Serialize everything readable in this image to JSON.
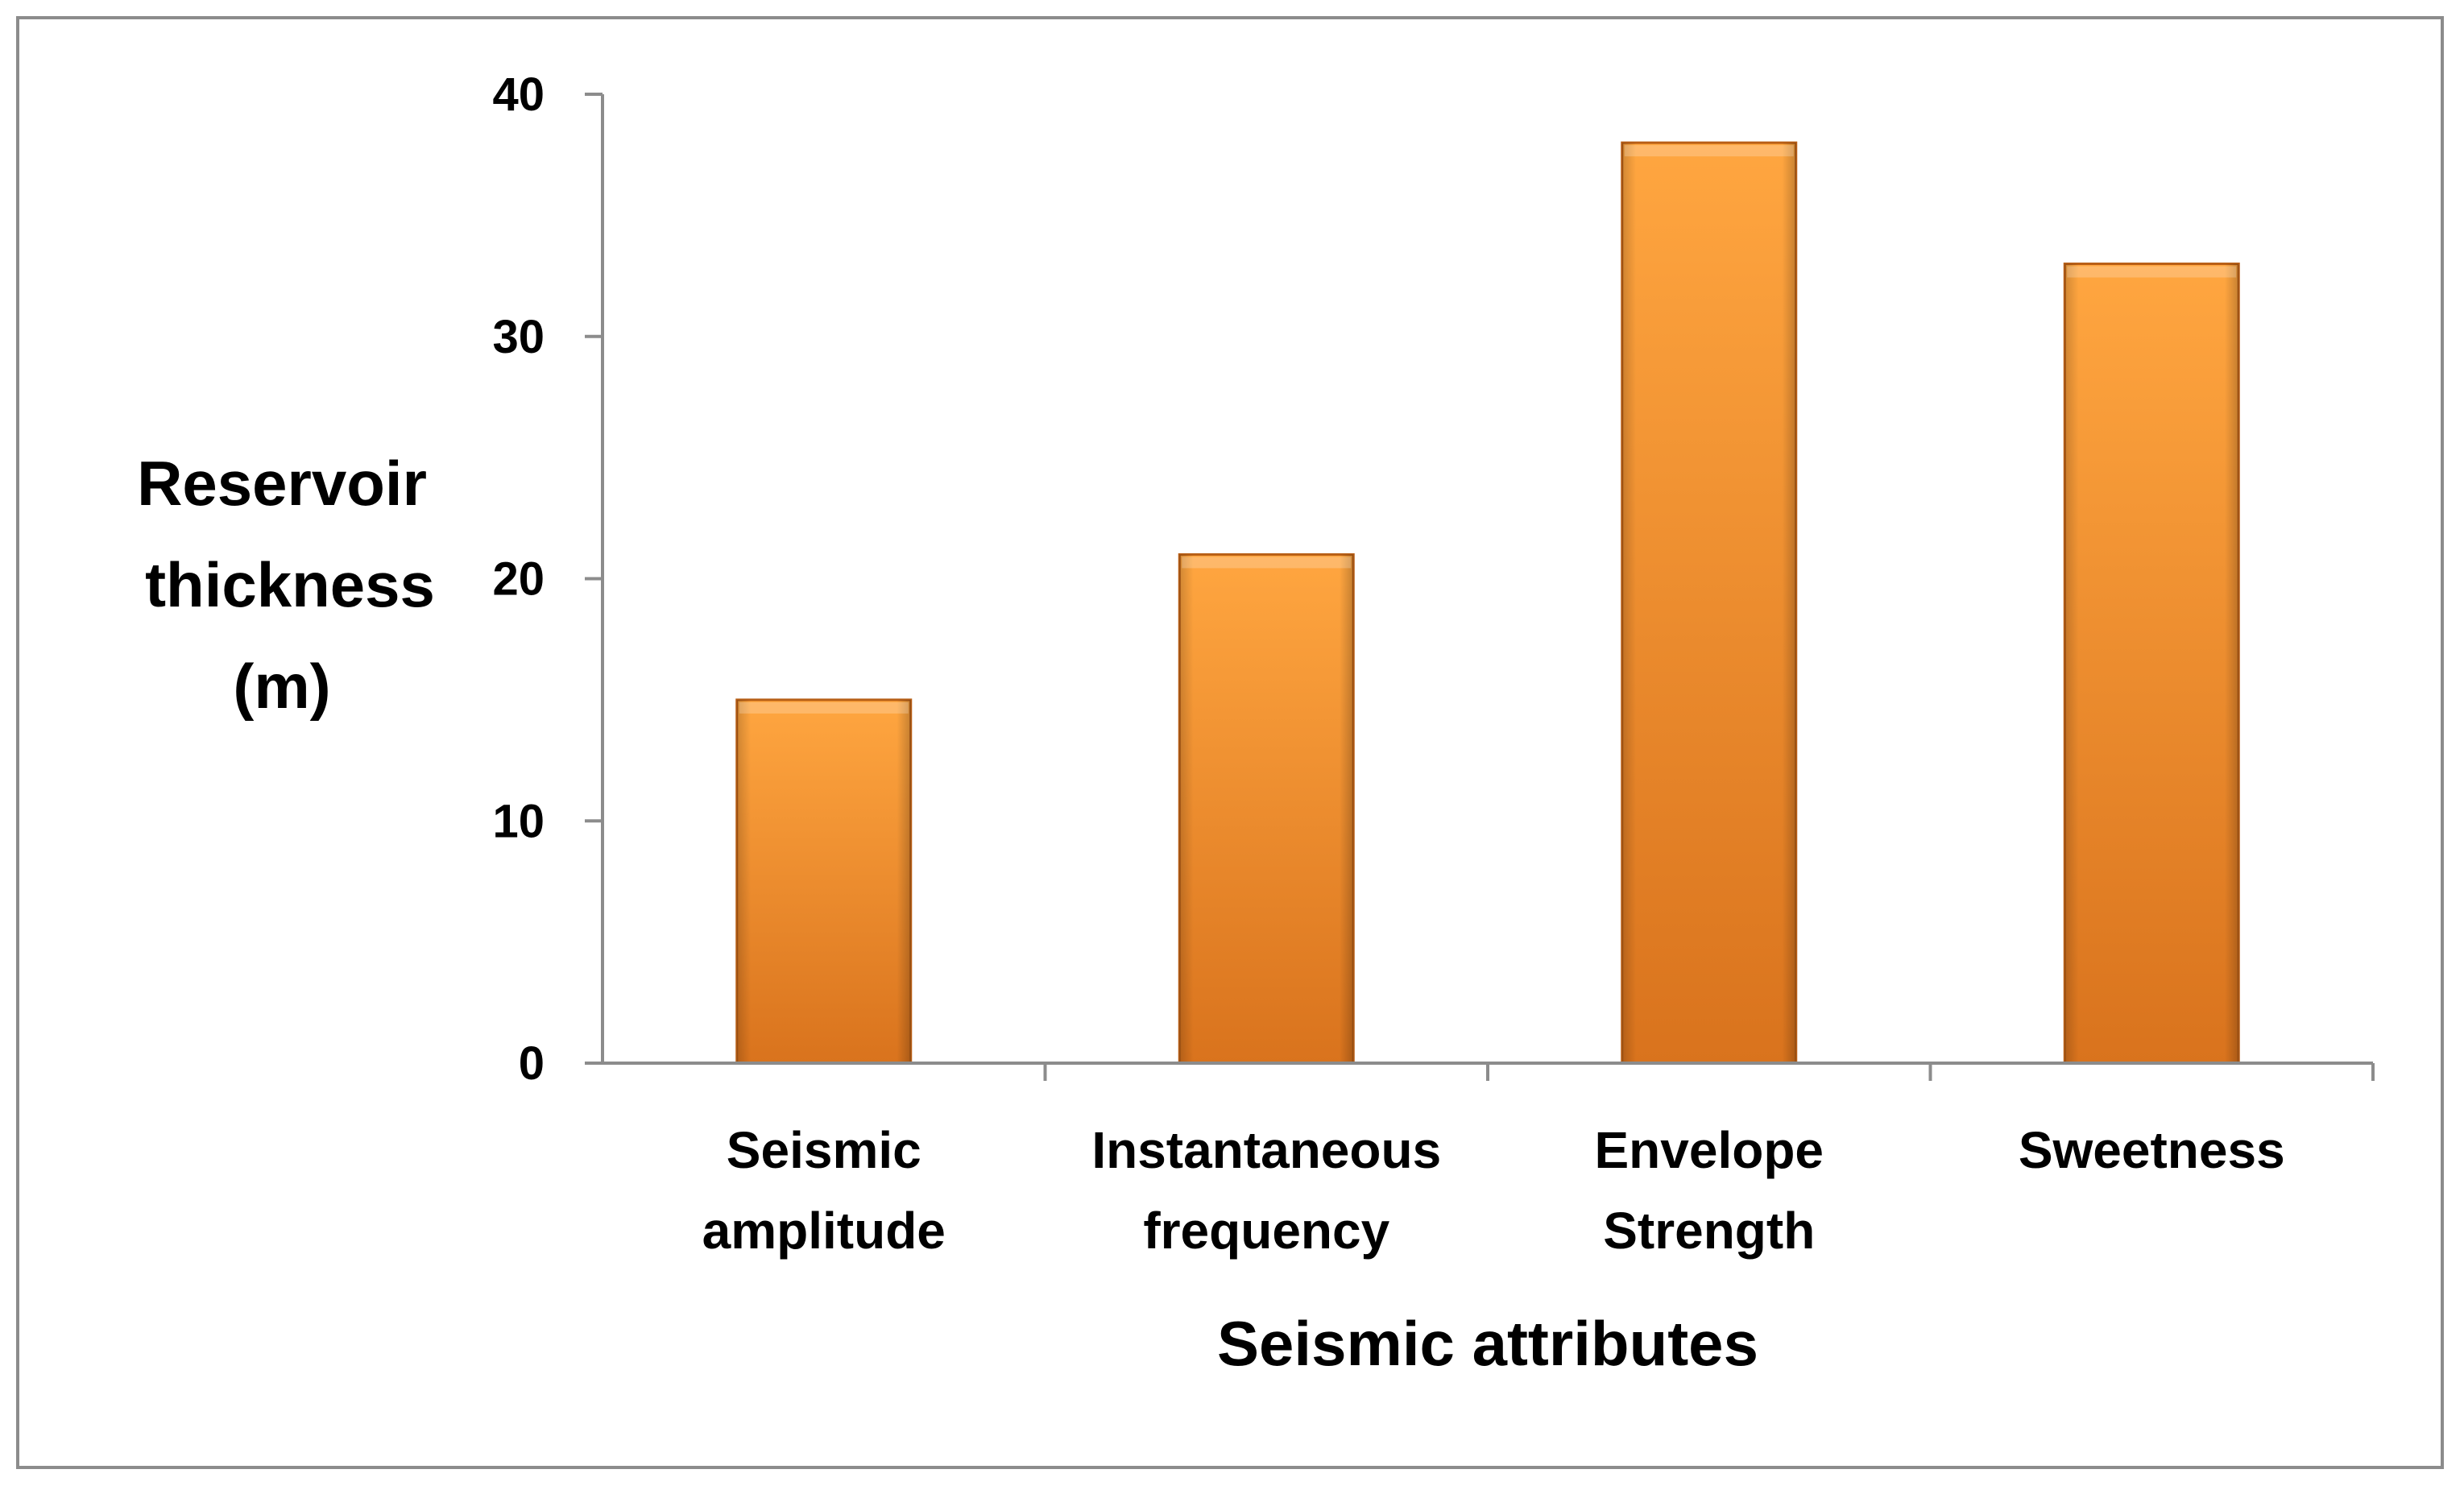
{
  "chart_data": {
    "type": "bar",
    "categories": [
      [
        "Seismic",
        "amplitude"
      ],
      [
        "Instantaneous",
        "frequency"
      ],
      [
        "Envelope",
        "Strength"
      ],
      [
        "Sweetness"
      ]
    ],
    "values": [
      15,
      21,
      38,
      33
    ],
    "xlabel": "Seismic attributes",
    "ylabel": [
      "Reservoir",
      "thickness",
      "(m)"
    ],
    "ylim": [
      0,
      40
    ],
    "yticks": [
      0,
      10,
      20,
      30,
      40
    ],
    "grid": false,
    "legend": "none",
    "colors": {
      "bar_light": "#ffa640",
      "bar_mid": "#f28a2a",
      "bar_dark": "#d9731d",
      "bar_edge": "#b85f16",
      "axis": "#8c8c8c",
      "frame": "#8c8c8c"
    }
  }
}
